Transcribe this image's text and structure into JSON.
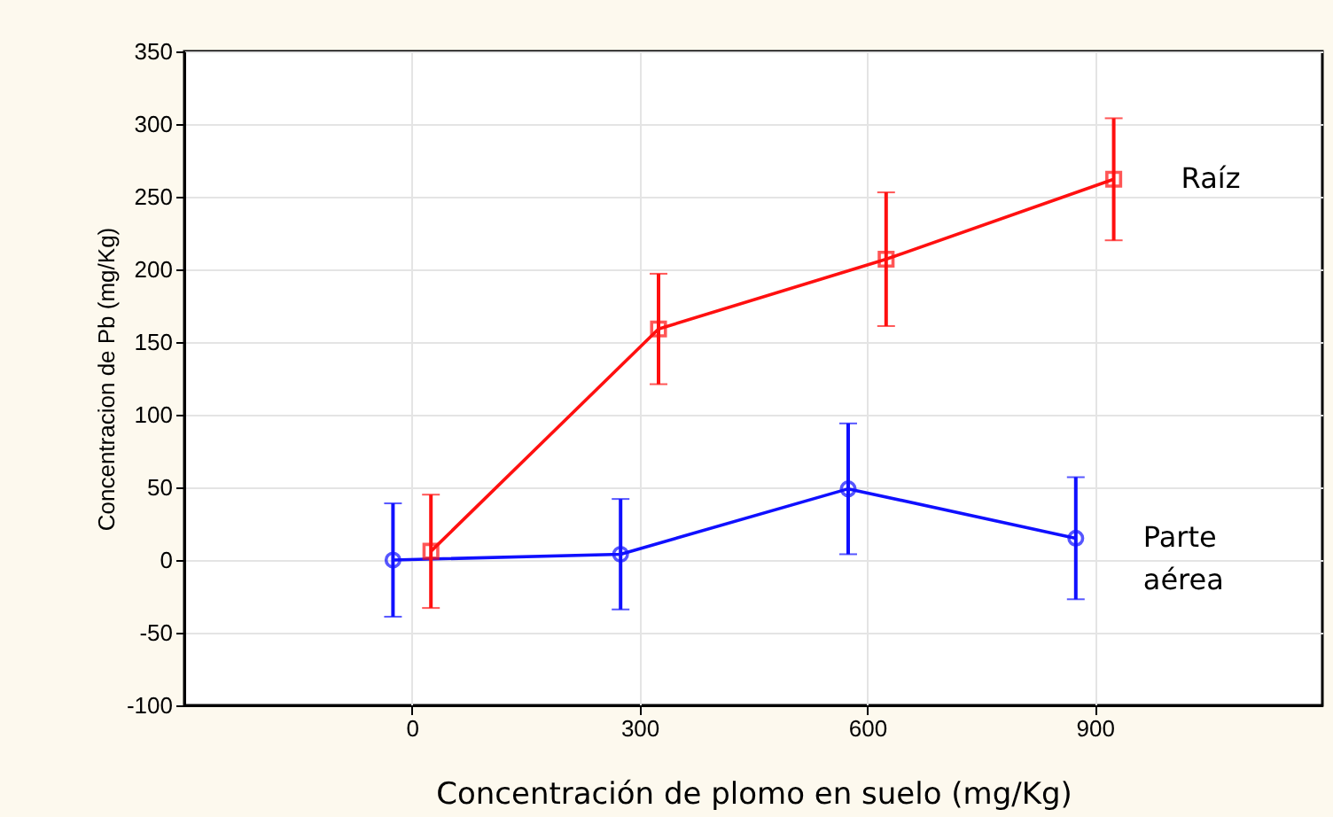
{
  "chart_data": {
    "type": "line",
    "xlabel": "Concentración de plomo en suelo (mg/Kg)",
    "ylabel": "Concentracion de Pb (mg/Kg)",
    "xlim": [
      -300,
      1200
    ],
    "xticks": [
      0,
      300,
      600,
      900
    ],
    "ylim": [
      -100,
      350
    ],
    "yticks": [
      -100,
      -50,
      0,
      50,
      100,
      150,
      200,
      250,
      300,
      350
    ],
    "grid": true,
    "legend": false,
    "series": [
      {
        "name": "Raíz",
        "color": "#ff1010",
        "marker": "square",
        "x": [
          25,
          325,
          625,
          925
        ],
        "values": [
          6,
          159,
          207,
          262
        ],
        "errors": [
          39,
          38,
          46,
          42
        ]
      },
      {
        "name": "Parte aérea",
        "color": "#1010ff",
        "marker": "circle",
        "x": [
          -25,
          275,
          575,
          875
        ],
        "values": [
          0,
          4,
          49,
          15
        ],
        "errors": [
          39,
          38,
          45,
          42
        ]
      }
    ]
  }
}
